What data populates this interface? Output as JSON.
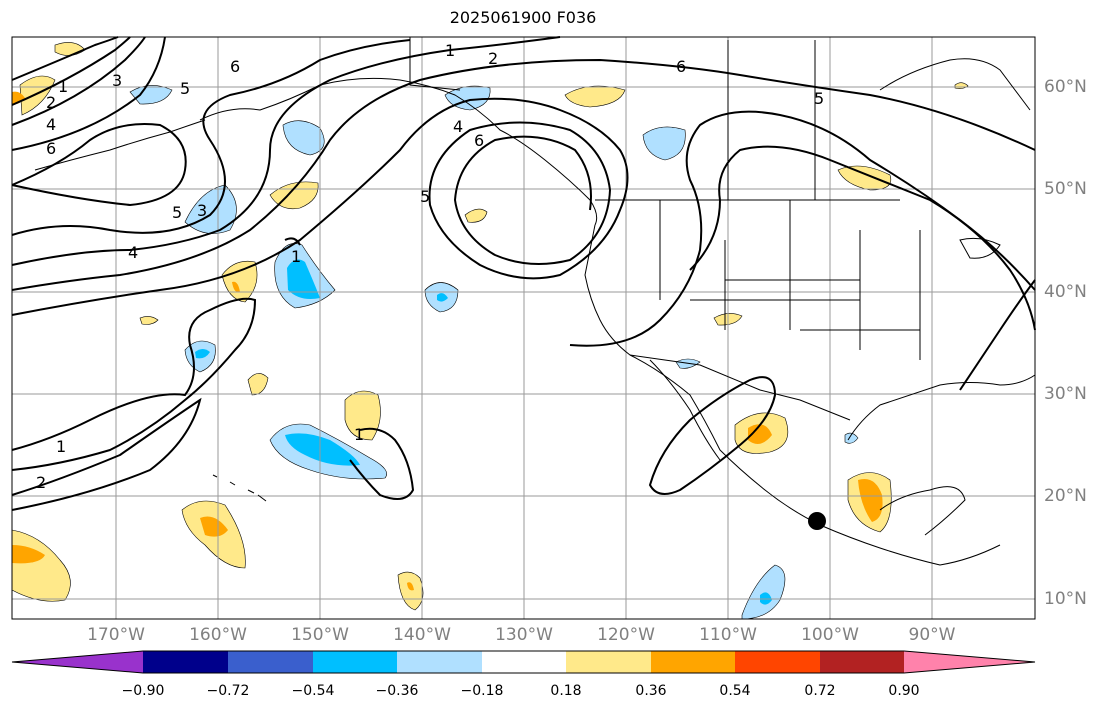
{
  "title": "2025061900 F036",
  "longitude_labels": [
    "170°W",
    "160°W",
    "150°W",
    "140°W",
    "130°W",
    "120°W",
    "110°W",
    "100°W",
    "90°W"
  ],
  "latitude_labels": [
    "60°N",
    "50°N",
    "40°N",
    "30°N",
    "20°N",
    "10°N"
  ],
  "contour_labels": [
    "1",
    "2",
    "3",
    "4",
    "5",
    "6",
    "1",
    "2",
    "4",
    "5",
    "6",
    "1",
    "2",
    "5",
    "6",
    "4",
    "6",
    "3",
    "1",
    "1",
    "5"
  ],
  "colorbar": {
    "tick_labels": [
      "−0.90",
      "−0.72",
      "−0.54",
      "−0.36",
      "−0.18",
      "0.18",
      "0.36",
      "0.54",
      "0.72",
      "0.90"
    ],
    "colors": [
      "#9932cc",
      "#00008b",
      "#3a5fcd",
      "#00bfff",
      "#b0e0ff",
      "#ffffff",
      "#ffe98a",
      "#ffa500",
      "#ff4500",
      "#b22222",
      "#ff82ab"
    ]
  },
  "colors": {
    "gridline": "#9a9a9a",
    "coastline": "#000000",
    "contour": "#000000",
    "positive_fill": "#ffe98a",
    "positive_fill_2": "#ffa500",
    "negative_fill": "#b0e0ff",
    "negative_fill_2": "#00bfff",
    "marker": "#000000"
  },
  "marker": {
    "label": "",
    "shape": "filled-circle"
  }
}
